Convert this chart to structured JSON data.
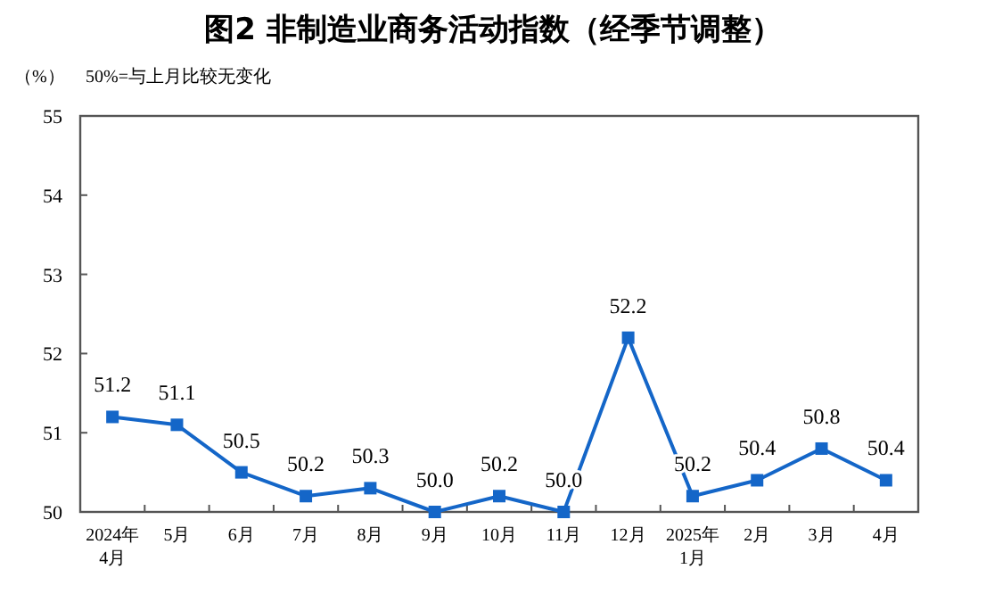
{
  "chart_data": {
    "type": "line",
    "title": "图2 非制造业商务活动指数（经季节调整）",
    "ylabel": "（%）",
    "annotations": [
      "50%=与上月比较无变化"
    ],
    "categories": [
      "2024年\n4月",
      "5月",
      "6月",
      "7月",
      "8月",
      "9月",
      "10月",
      "11月",
      "12月",
      "2025年\n1月",
      "2月",
      "3月",
      "4月"
    ],
    "series": [
      {
        "color": "#1466c8",
        "values": [
          51.2,
          51.1,
          50.5,
          50.2,
          50.3,
          50.0,
          50.2,
          50.0,
          52.2,
          50.2,
          50.4,
          50.8,
          50.4
        ]
      }
    ],
    "value_labels": [
      "51.2",
      "51.1",
      "50.5",
      "50.2",
      "50.3",
      "50.0",
      "50.2",
      "50.0",
      "52.2",
      "50.2",
      "50.4",
      "50.8",
      "50.4"
    ],
    "ylim": [
      50,
      55
    ],
    "yticks": [
      50,
      51,
      52,
      53,
      54,
      55
    ],
    "grid": false,
    "marker": "square",
    "line_style": "solid"
  }
}
